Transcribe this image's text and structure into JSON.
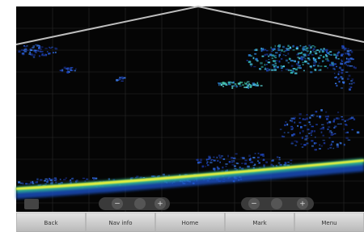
{
  "softkeys": [
    "Back",
    "Nav info",
    "Home",
    "Mark",
    "Menu"
  ],
  "zoom_left": {
    "minus": "−",
    "plus": "+"
  },
  "zoom_right": {
    "minus": "−",
    "plus": "+"
  }
}
